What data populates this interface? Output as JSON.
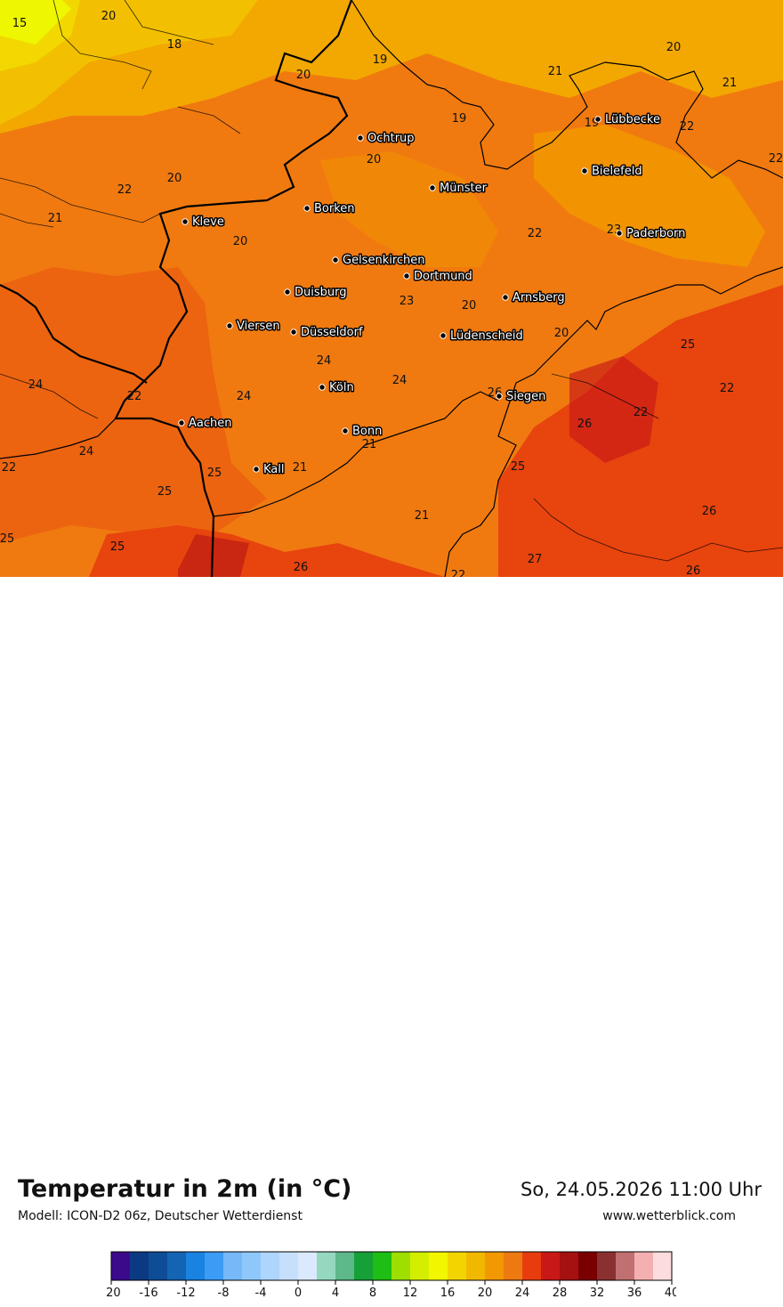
{
  "title": "Temperatur in 2m (in °C)",
  "model": "Modell: ICON-D2 06z, Deutscher Wetterdienst",
  "datetime": "So, 24.05.2026 11:00 Uhr",
  "website": "www.wetterblick.com",
  "cities": [
    {
      "name": "Ochtrup"
    },
    {
      "name": "Lübbecke"
    },
    {
      "name": "Bielefeld"
    },
    {
      "name": "Münster"
    },
    {
      "name": "Borken"
    },
    {
      "name": "Kleve"
    },
    {
      "name": "Paderborn"
    },
    {
      "name": "Gelsenkirchen"
    },
    {
      "name": "Dortmund"
    },
    {
      "name": "Duisburg"
    },
    {
      "name": "Arnsberg"
    },
    {
      "name": "Viersen"
    },
    {
      "name": "Düsseldorf"
    },
    {
      "name": "Lüdenscheid"
    },
    {
      "name": "Köln"
    },
    {
      "name": "Siegen"
    },
    {
      "name": "Aachen"
    },
    {
      "name": "Bonn"
    },
    {
      "name": "Kall"
    }
  ],
  "temperature_labels": [
    "15",
    "20",
    "18",
    "19",
    "20",
    "21",
    "20",
    "21",
    "19",
    "19",
    "22",
    "20",
    "22",
    "21",
    "20",
    "20",
    "22",
    "22",
    "23",
    "20",
    "20",
    "23",
    "25",
    "24",
    "24",
    "22",
    "24",
    "24",
    "22",
    "26",
    "24",
    "22",
    "21",
    "21",
    "25",
    "22",
    "25",
    "25",
    "26",
    "25",
    "21",
    "26",
    "25",
    "27",
    "22",
    "26",
    "26"
  ],
  "colorbar": {
    "colors": [
      "#3b0a8c",
      "#0b3a83",
      "#0f4c96",
      "#1464b4",
      "#1a82e0",
      "#3c9cf5",
      "#76b8f8",
      "#8ec8fa",
      "#aed5fb",
      "#c6e0fc",
      "#dae9fd",
      "#94d8c0",
      "#5eb88a",
      "#16a038",
      "#1ebe14",
      "#9ede00",
      "#d4ee00",
      "#f2f600",
      "#f2d400",
      "#f2b800",
      "#f29800",
      "#ec7a10",
      "#e83c0e",
      "#c81818",
      "#a51010",
      "#7a0000",
      "#8a3030",
      "#c07070",
      "#f4b0b0",
      "#fcdcdc"
    ],
    "ticks": [
      "-20",
      "-16",
      "-12",
      "-8",
      "-4",
      "0",
      "4",
      "8",
      "12",
      "16",
      "20",
      "24",
      "28",
      "32",
      "36",
      "40"
    ]
  }
}
